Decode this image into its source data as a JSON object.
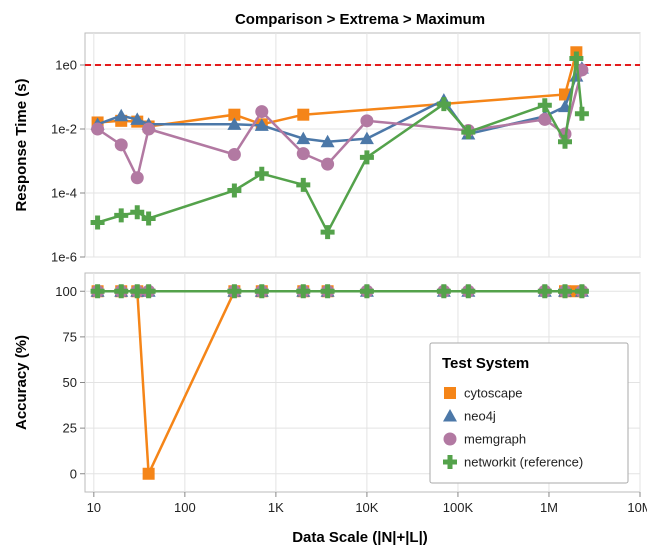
{
  "chart_data": {
    "type": "line",
    "title": "Comparison > Extrema > Maximum",
    "xlabel": "Data Scale (|N|+|L|)",
    "x_scale": "log",
    "x_ticks": [
      {
        "v": 10,
        "label": "10"
      },
      {
        "v": 100,
        "label": "100"
      },
      {
        "v": 1000,
        "label": "1K"
      },
      {
        "v": 10000,
        "label": "10K"
      },
      {
        "v": 100000,
        "label": "100K"
      },
      {
        "v": 1000000,
        "label": "1M"
      },
      {
        "v": 10000000,
        "label": "10M"
      }
    ],
    "xlim": [
      8,
      10000000
    ],
    "threshold": {
      "y": 1,
      "color": "#e41a1c",
      "style": "dashed"
    },
    "legend": {
      "title": "Test System",
      "placement": "bottom-right of accuracy panel"
    },
    "series": [
      {
        "name": "cytoscape",
        "color": "#f58518",
        "marker": "square"
      },
      {
        "name": "neo4j",
        "color": "#4c78a8",
        "marker": "triangle"
      },
      {
        "name": "memgraph",
        "color": "#b279a2",
        "marker": "circle"
      },
      {
        "name": "networkit (reference)",
        "color": "#54a24b",
        "marker": "cross"
      }
    ],
    "panels": [
      {
        "id": "response",
        "ylabel": "Response Time (s)",
        "y_scale": "log",
        "ylim": [
          1e-06,
          10
        ],
        "y_ticks": [
          {
            "v": 1e-06,
            "label": "1e-6"
          },
          {
            "v": 0.0001,
            "label": "1e-4"
          },
          {
            "v": 0.01,
            "label": "1e-2"
          },
          {
            "v": 1,
            "label": "1e0"
          }
        ],
        "series_points": {
          "cytoscape": [
            [
              11,
              0.016
            ],
            [
              20,
              0.018
            ],
            [
              30,
              0.017
            ],
            [
              40,
              0.012
            ],
            [
              350,
              0.028
            ],
            [
              700,
              0.014
            ],
            [
              2000,
              0.028
            ],
            [
              1500000,
              0.12
            ],
            [
              2000000,
              2.5
            ]
          ],
          "neo4j": [
            [
              11,
              0.014
            ],
            [
              20,
              0.026
            ],
            [
              30,
              0.02
            ],
            [
              40,
              0.014
            ],
            [
              350,
              0.014
            ],
            [
              700,
              0.013
            ],
            [
              2000,
              0.005
            ],
            [
              3700,
              0.004
            ],
            [
              10000,
              0.005
            ],
            [
              70000,
              0.08
            ],
            [
              130000,
              0.007
            ],
            [
              900000,
              0.025
            ],
            [
              1500000,
              0.05
            ],
            [
              2000000,
              0.45
            ],
            [
              2300000,
              0.8
            ]
          ],
          "memgraph": [
            [
              11,
              0.01
            ],
            [
              20,
              0.0032
            ],
            [
              30,
              0.0003
            ],
            [
              40,
              0.01
            ],
            [
              350,
              0.0016
            ],
            [
              700,
              0.035
            ],
            [
              2000,
              0.0017
            ],
            [
              3700,
              0.0008
            ],
            [
              10000,
              0.018
            ],
            [
              130000,
              0.009
            ],
            [
              900000,
              0.02
            ],
            [
              1500000,
              0.007
            ],
            [
              2300000,
              0.7
            ]
          ],
          "networkit (reference)": [
            [
              11,
              1.2e-05
            ],
            [
              20,
              2e-05
            ],
            [
              30,
              2.5e-05
            ],
            [
              40,
              1.6e-05
            ],
            [
              350,
              0.00012
            ],
            [
              700,
              0.0004
            ],
            [
              2000,
              0.00018
            ],
            [
              3700,
              6e-06
            ],
            [
              10000,
              0.0013
            ],
            [
              70000,
              0.06
            ],
            [
              130000,
              0.008
            ],
            [
              900000,
              0.055
            ],
            [
              1500000,
              0.004
            ],
            [
              2000000,
              1.6
            ],
            [
              2300000,
              0.03
            ]
          ]
        }
      },
      {
        "id": "accuracy",
        "ylabel": "Accuracy (%)",
        "y_scale": "linear",
        "ylim": [
          -10,
          110
        ],
        "y_ticks": [
          {
            "v": 0,
            "label": "0"
          },
          {
            "v": 25,
            "label": "25"
          },
          {
            "v": 50,
            "label": "50"
          },
          {
            "v": 75,
            "label": "75"
          },
          {
            "v": 100,
            "label": "100"
          }
        ],
        "series_points": {
          "cytoscape": [
            [
              11,
              100
            ],
            [
              20,
              100
            ],
            [
              30,
              100
            ],
            [
              40,
              0
            ],
            [
              350,
              100
            ],
            [
              700,
              100
            ],
            [
              2000,
              100
            ],
            [
              3700,
              100
            ],
            [
              1500000,
              100
            ],
            [
              2000000,
              100
            ]
          ],
          "neo4j": [
            [
              11,
              100
            ],
            [
              20,
              100
            ],
            [
              30,
              100
            ],
            [
              40,
              100
            ],
            [
              350,
              100
            ],
            [
              700,
              100
            ],
            [
              2000,
              100
            ],
            [
              3700,
              100
            ],
            [
              10000,
              100
            ],
            [
              70000,
              100
            ],
            [
              130000,
              100
            ],
            [
              900000,
              100
            ],
            [
              1500000,
              100
            ],
            [
              2300000,
              100
            ]
          ],
          "memgraph": [
            [
              11,
              100
            ],
            [
              20,
              100
            ],
            [
              30,
              100
            ],
            [
              40,
              100
            ],
            [
              350,
              100
            ],
            [
              700,
              100
            ],
            [
              2000,
              100
            ],
            [
              3700,
              100
            ],
            [
              10000,
              100
            ],
            [
              70000,
              100
            ],
            [
              130000,
              100
            ],
            [
              900000,
              100
            ],
            [
              1500000,
              100
            ],
            [
              2300000,
              100
            ]
          ],
          "networkit (reference)": [
            [
              11,
              100
            ],
            [
              20,
              100
            ],
            [
              30,
              100
            ],
            [
              40,
              100
            ],
            [
              350,
              100
            ],
            [
              700,
              100
            ],
            [
              2000,
              100
            ],
            [
              3700,
              100
            ],
            [
              10000,
              100
            ],
            [
              70000,
              100
            ],
            [
              130000,
              100
            ],
            [
              900000,
              100
            ],
            [
              1500000,
              100
            ],
            [
              2300000,
              100
            ]
          ]
        }
      }
    ]
  }
}
